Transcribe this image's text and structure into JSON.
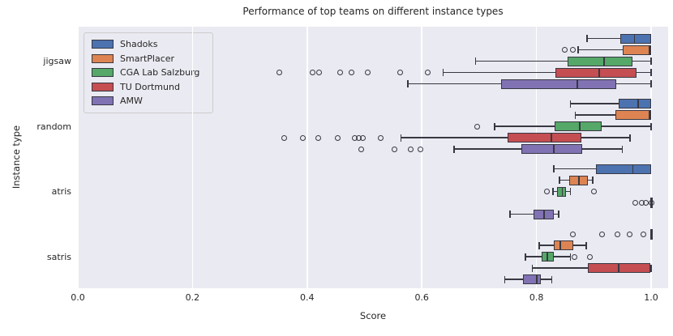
{
  "title": "Performance of top teams on different instance types",
  "axes": {
    "xlabel": "Score",
    "ylabel": "Instance type",
    "x_ticks": [
      "0.0",
      "0.2",
      "0.4",
      "0.6",
      "0.8",
      "1.0"
    ],
    "x_tick_values": [
      0.0,
      0.2,
      0.4,
      0.6,
      0.8,
      1.0
    ],
    "y_ticks": [
      "jigsaw",
      "random",
      "atris",
      "satris"
    ]
  },
  "colors": {
    "plot_background": "#eaeaf2",
    "gridline": "#ffffff",
    "box_edge": "#383842",
    "text": "#262626",
    "shadoks_blue": "#4c72b0",
    "smartplacer_orange": "#dd8452",
    "cga_green": "#55a868",
    "tudortmund_red": "#c44e52",
    "amw_purple": "#8172b3"
  },
  "legend": {
    "position": "upper left",
    "entries": [
      "Shadoks",
      "SmartPlacer",
      "CGA Lab Salzburg",
      "TU Dortmund",
      "AMW"
    ]
  },
  "chart_data": {
    "type": "boxplot",
    "orientation": "horizontal",
    "title": "Performance of top teams on different instance types",
    "xlabel": "Score",
    "ylabel": "Instance type",
    "xlim": [
      0.0,
      1.03
    ],
    "grid": true,
    "legend_position": "upper left",
    "categories": [
      "jigsaw",
      "random",
      "atris",
      "satris"
    ],
    "series": [
      {
        "name": "Shadoks",
        "color": "#4c72b0",
        "boxes": [
          {
            "lo": 0.888,
            "q1": 0.946,
            "med": 0.97,
            "q3": 1.0,
            "hi": 1.0,
            "outliers": []
          },
          {
            "lo": 0.859,
            "q1": 0.943,
            "med": 0.976,
            "q3": 1.0,
            "hi": 1.0,
            "outliers": []
          },
          {
            "lo": 0.83,
            "q1": 0.904,
            "med": 0.967,
            "q3": 1.0,
            "hi": 1.0,
            "outliers": []
          },
          {
            "lo": 1.0,
            "q1": 1.0,
            "med": 1.0,
            "q3": 1.0,
            "hi": 1.0,
            "outliers": [
              0.864,
              0.915,
              0.942,
              0.963,
              0.986
            ]
          }
        ]
      },
      {
        "name": "SmartPlacer",
        "color": "#dd8452",
        "boxes": [
          {
            "lo": 0.873,
            "q1": 0.95,
            "med": 1.0,
            "q3": 1.0,
            "hi": 1.0,
            "outliers": [
              0.849,
              0.863
            ]
          },
          {
            "lo": 0.868,
            "q1": 0.938,
            "med": 1.0,
            "q3": 1.0,
            "hi": 1.0,
            "outliers": []
          },
          {
            "lo": 0.84,
            "q1": 0.857,
            "med": 0.873,
            "q3": 0.89,
            "hi": 0.898,
            "outliers": []
          },
          {
            "lo": 0.805,
            "q1": 0.83,
            "med": 0.84,
            "q3": 0.864,
            "hi": 0.887,
            "outliers": []
          }
        ]
      },
      {
        "name": "CGA Lab Salzburg",
        "color": "#55a868",
        "boxes": [
          {
            "lo": 0.694,
            "q1": 0.854,
            "med": 0.917,
            "q3": 0.967,
            "hi": 1.0,
            "outliers": []
          },
          {
            "lo": 0.727,
            "q1": 0.832,
            "med": 0.874,
            "q3": 0.914,
            "hi": 1.0,
            "outliers": [
              0.696
            ]
          },
          {
            "lo": 0.829,
            "q1": 0.836,
            "med": 0.844,
            "q3": 0.851,
            "hi": 0.859,
            "outliers": [
              0.818,
              0.9
            ]
          },
          {
            "lo": 0.781,
            "q1": 0.809,
            "med": 0.818,
            "q3": 0.83,
            "hi": 0.859,
            "outliers": [
              0.867,
              0.893
            ]
          }
        ]
      },
      {
        "name": "TU Dortmund",
        "color": "#c44e52",
        "boxes": [
          {
            "lo": 0.637,
            "q1": 0.833,
            "med": 0.908,
            "q3": 0.975,
            "hi": 1.0,
            "outliers": [
              0.352,
              0.41,
              0.421,
              0.458,
              0.477,
              0.506,
              0.562,
              0.611
            ]
          },
          {
            "lo": 0.564,
            "q1": 0.75,
            "med": 0.825,
            "q3": 0.878,
            "hi": 0.963,
            "outliers": [
              0.36,
              0.392,
              0.42,
              0.454,
              0.483,
              0.49,
              0.497,
              0.528
            ]
          },
          {
            "lo": 1.0,
            "q1": 1.0,
            "med": 1.0,
            "q3": 1.0,
            "hi": 1.0,
            "outliers": [
              0.972,
              0.984,
              0.991,
              1.0
            ]
          },
          {
            "lo": 0.793,
            "q1": 0.89,
            "med": 0.942,
            "q3": 0.999,
            "hi": 1.0,
            "outliers": []
          }
        ]
      },
      {
        "name": "AMW",
        "color": "#8172b3",
        "boxes": [
          {
            "lo": 0.576,
            "q1": 0.738,
            "med": 0.87,
            "q3": 0.939,
            "hi": 1.0,
            "outliers": []
          },
          {
            "lo": 0.656,
            "q1": 0.774,
            "med": 0.829,
            "q3": 0.88,
            "hi": 0.95,
            "outliers": [
              0.494,
              0.553,
              0.58,
              0.597
            ]
          },
          {
            "lo": 0.754,
            "q1": 0.795,
            "med": 0.812,
            "q3": 0.83,
            "hi": 0.839,
            "outliers": []
          },
          {
            "lo": 0.745,
            "q1": 0.777,
            "med": 0.799,
            "q3": 0.808,
            "hi": 0.827,
            "outliers": []
          }
        ]
      }
    ]
  }
}
